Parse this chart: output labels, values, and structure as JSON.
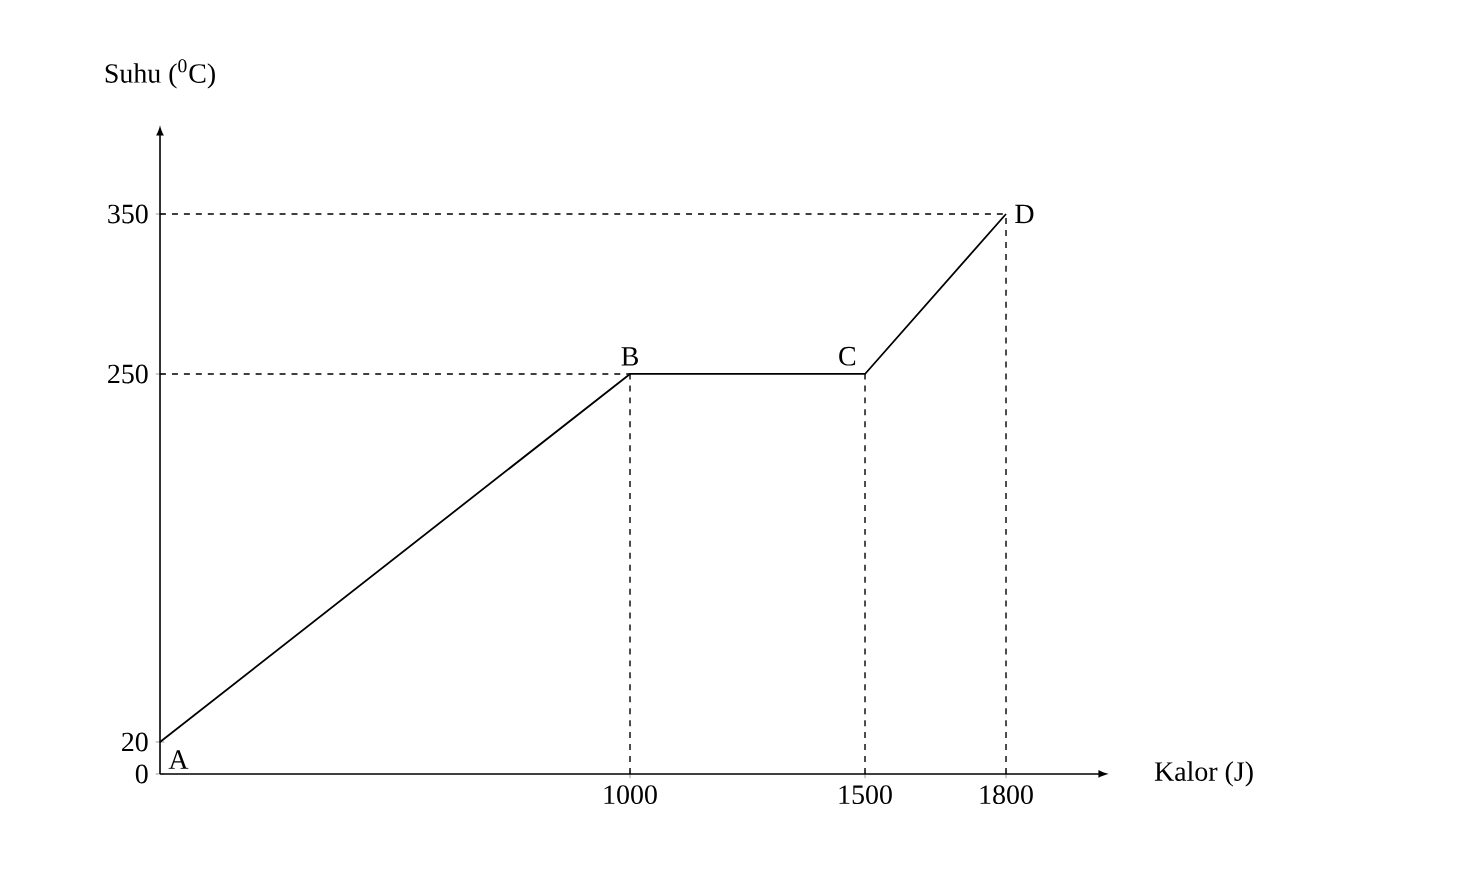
{
  "chart_data": {
    "type": "line",
    "xlabel": "Kalor (J)",
    "ylabel": "Suhu ($^{0}$C)",
    "x": [
      0,
      1000,
      1500,
      1800
    ],
    "series": [
      {
        "color": "#000000",
        "values": [
          20,
          250,
          250,
          350
        ]
      }
    ],
    "xlim": [
      0,
      2000
    ],
    "ylim": [
      0,
      400
    ],
    "xticks": [
      1000,
      1500,
      1800
    ],
    "yticks": [
      0,
      20,
      250,
      350
    ],
    "grid": false,
    "marker": "none",
    "line_style": "solid",
    "ref_lines": [
      {
        "axis": "y",
        "value": 250,
        "color": "#000000",
        "line_style": "dashed"
      },
      {
        "axis": "y",
        "value": 350,
        "color": "#000000",
        "line_style": "dashed"
      },
      {
        "axis": "x",
        "value": 1000,
        "color": "#000000",
        "line_style": "dashed"
      },
      {
        "axis": "x",
        "value": 1500,
        "color": "#000000",
        "line_style": "dashed"
      },
      {
        "axis": "x",
        "value": 1800,
        "color": "#000000",
        "line_style": "dashed"
      }
    ],
    "annotations": [
      {
        "text": "A",
        "x": 0,
        "y": 20
      },
      {
        "text": "B",
        "x": 1000,
        "y": 250
      },
      {
        "text": "C",
        "x": 1500,
        "y": 250
      },
      {
        "text": "D",
        "x": 1800,
        "y": 350
      }
    ]
  }
}
